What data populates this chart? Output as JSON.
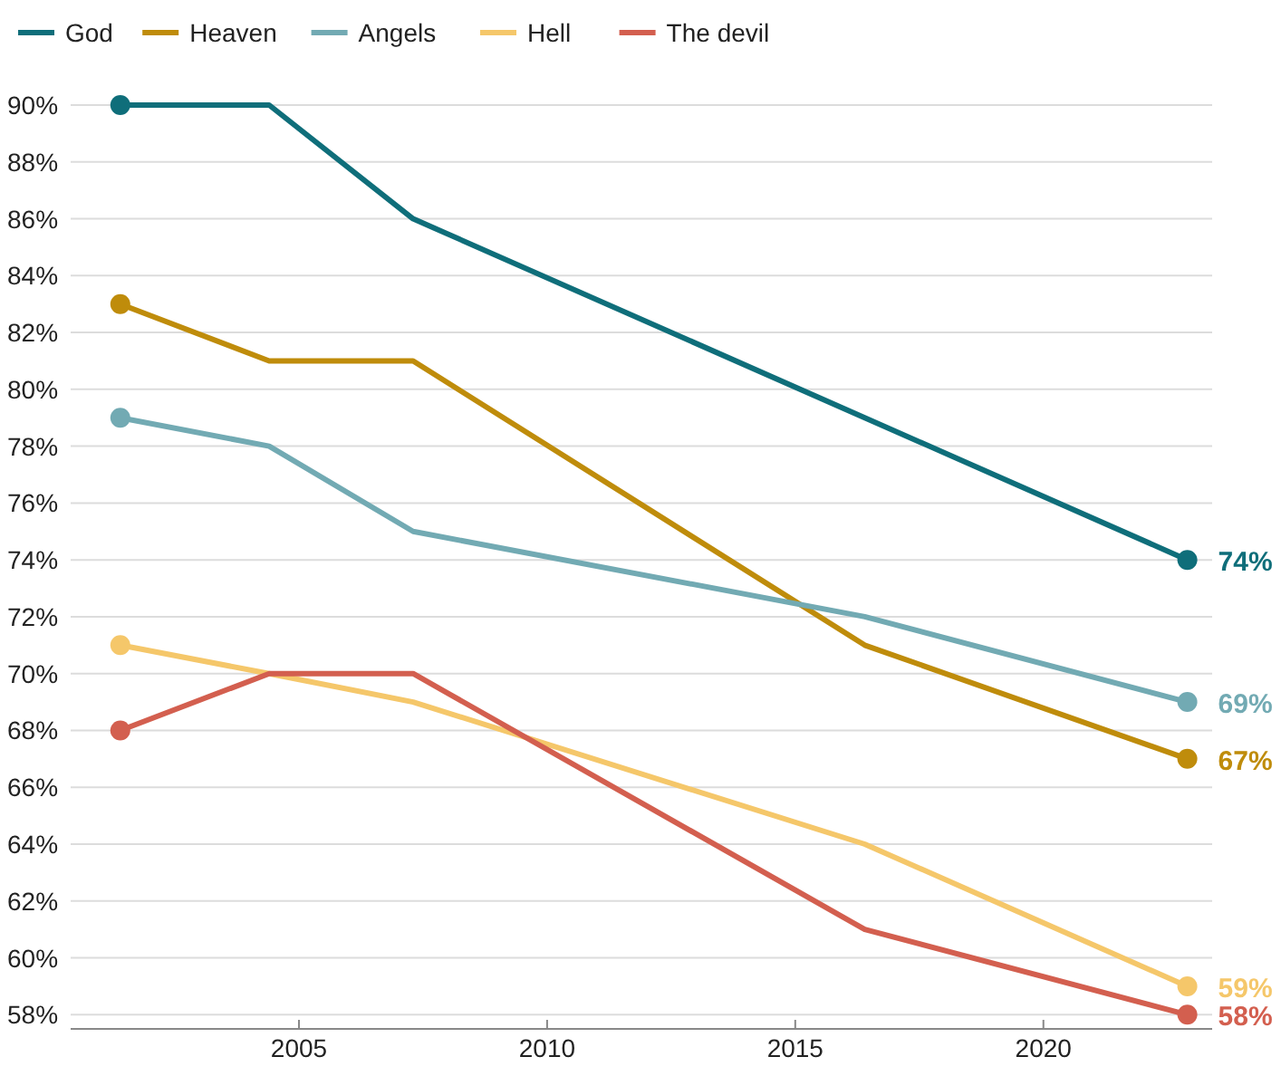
{
  "chart_data": {
    "type": "line",
    "x": [
      2001.4,
      2004.4,
      2007.3,
      2016.4,
      2022.9
    ],
    "xlim": [
      2000.4,
      2023.4
    ],
    "xticks": [
      2005,
      2010,
      2015,
      2020
    ],
    "ylim": [
      57.5,
      90
    ],
    "yticks": [
      {
        "value": 58,
        "label": "58%"
      },
      {
        "value": 60,
        "label": "60%"
      },
      {
        "value": 62,
        "label": "62%"
      },
      {
        "value": 64,
        "label": "64%"
      },
      {
        "value": 66,
        "label": "66%"
      },
      {
        "value": 68,
        "label": "68%"
      },
      {
        "value": 70,
        "label": "70%"
      },
      {
        "value": 72,
        "label": "72%"
      },
      {
        "value": 74,
        "label": "74%"
      },
      {
        "value": 76,
        "label": "76%"
      },
      {
        "value": 78,
        "label": "78%"
      },
      {
        "value": 80,
        "label": "80%"
      },
      {
        "value": 82,
        "label": "82%"
      },
      {
        "value": 84,
        "label": "84%"
      },
      {
        "value": 86,
        "label": "86%"
      },
      {
        "value": 88,
        "label": "88%"
      },
      {
        "value": 90,
        "label": "90%"
      }
    ],
    "grid": "y",
    "legend": "top left",
    "line_style": "solid",
    "series": [
      {
        "name": "God",
        "color": "#0f6e7a",
        "values": [
          90,
          90,
          86,
          79,
          74
        ],
        "value_labels": [
          null,
          null,
          null,
          null,
          "74%"
        ]
      },
      {
        "name": "Heaven",
        "color": "#bf8c0b",
        "values": [
          83,
          81,
          81,
          71,
          67
        ],
        "value_labels": [
          null,
          null,
          null,
          null,
          "67%"
        ]
      },
      {
        "name": "Angels",
        "color": "#72aab3",
        "values": [
          79,
          78,
          75,
          72,
          69
        ],
        "value_labels": [
          null,
          null,
          null,
          null,
          "69%"
        ]
      },
      {
        "name": "Hell",
        "color": "#f5c76a",
        "values": [
          71,
          70,
          69,
          64,
          59
        ],
        "value_labels": [
          null,
          null,
          null,
          null,
          "59%"
        ]
      },
      {
        "name": "The devil",
        "color": "#d35f4f",
        "values": [
          68,
          70,
          70,
          61,
          58
        ],
        "value_labels": [
          null,
          null,
          null,
          null,
          "58%"
        ]
      }
    ]
  }
}
